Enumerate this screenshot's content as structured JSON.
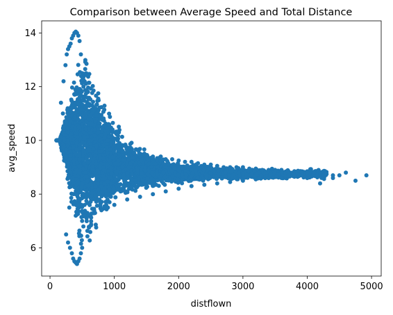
{
  "chart_data": {
    "type": "scatter",
    "title": "Comparison between Average Speed and Total Distance",
    "xlabel": "distflown",
    "ylabel": "avg_speed",
    "xlim": [
      -130,
      5150
    ],
    "ylim": [
      4.95,
      14.45
    ],
    "xticks": [
      0,
      1000,
      2000,
      3000,
      4000,
      5000
    ],
    "xtick_labels": [
      "0",
      "1000",
      "2000",
      "3000",
      "4000",
      "5000"
    ],
    "yticks": [
      6,
      8,
      10,
      12,
      14
    ],
    "ytick_labels": [
      "6",
      "8",
      "10",
      "12",
      "14"
    ],
    "grid": false,
    "legend": null,
    "marker_color": "#1f77b4",
    "series": [
      {
        "x": [
          100,
          150,
          170,
          200,
          210,
          240,
          260,
          280,
          300,
          320,
          340,
          360,
          380,
          400,
          420,
          440,
          460,
          480,
          500,
          520,
          250,
          280,
          310,
          340,
          360,
          380,
          400,
          420,
          440,
          460,
          480,
          500,
          300,
          350,
          400,
          450,
          500,
          550,
          600,
          650,
          700,
          750,
          800,
          850,
          900,
          950,
          1000,
          1100,
          1200,
          1300,
          1400,
          1500,
          1600,
          1700,
          1800,
          1900,
          2000,
          2100,
          2200,
          2300,
          2400,
          2500,
          2600,
          2700,
          2800,
          2900,
          3000,
          3100,
          3200,
          3300,
          3400,
          3500,
          3600,
          3700,
          3800,
          3900,
          4000,
          4100,
          4200,
          4300,
          4400,
          4500,
          4600,
          4750,
          4920,
          300,
          400,
          500,
          600,
          700,
          800,
          900,
          1000,
          1200,
          1400,
          1600,
          1800,
          2000,
          2200,
          2400,
          2600,
          2800,
          3000,
          3200,
          3400,
          3600,
          3800,
          4000,
          4200,
          4400
        ],
        "y": [
          10.0,
          10.0,
          11.4,
          11.0,
          12.2,
          12.8,
          13.2,
          13.4,
          13.5,
          13.6,
          13.8,
          13.9,
          14.0,
          14.05,
          14.0,
          13.9,
          13.7,
          13.2,
          12.5,
          12.0,
          6.5,
          6.2,
          6.0,
          5.8,
          5.6,
          5.5,
          5.45,
          5.4,
          5.5,
          5.6,
          5.8,
          6.0,
          9.0,
          8.5,
          9.5,
          10.5,
          11.5,
          11.0,
          10.8,
          10.6,
          10.4,
          10.3,
          10.2,
          10.1,
          10.0,
          9.9,
          9.8,
          9.7,
          9.6,
          9.55,
          9.5,
          9.45,
          9.4,
          9.35,
          9.3,
          9.3,
          9.25,
          9.2,
          9.2,
          9.15,
          9.1,
          9.1,
          9.05,
          9.0,
          9.0,
          9.0,
          9.0,
          8.95,
          8.95,
          8.9,
          8.9,
          8.9,
          8.9,
          8.85,
          8.85,
          8.85,
          8.8,
          8.8,
          8.8,
          8.75,
          8.7,
          8.7,
          8.8,
          8.5,
          8.7,
          7.5,
          7.2,
          7.0,
          7.2,
          7.3,
          7.4,
          7.5,
          7.6,
          7.8,
          7.9,
          8.0,
          8.1,
          8.2,
          8.3,
          8.35,
          8.4,
          8.45,
          8.5,
          8.55,
          8.6,
          8.6,
          8.65,
          8.6,
          8.4,
          8.6
        ]
      }
    ]
  }
}
